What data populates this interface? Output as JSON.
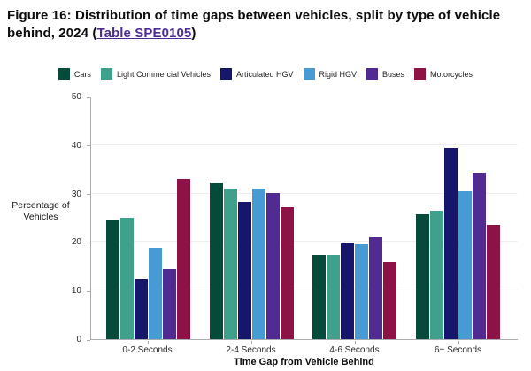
{
  "title": {
    "prefix": "Figure 16: Distribution of time gaps between vehicles, split by type of vehicle behind, 2024 (",
    "link": "Table SPE0105",
    "suffix": ")"
  },
  "colors": {
    "title_text": "#0b0c0c",
    "link": "#4c2c92",
    "axis_line": "#a9adb0",
    "gridline": "#efefef"
  },
  "chart_data": {
    "type": "bar",
    "title": "Figure 16: Distribution of time gaps between vehicles, split by type of vehicle behind, 2024 (Table SPE0105)",
    "categories": [
      "0-2 Seconds",
      "2-4 Seconds",
      "4-6 Seconds",
      "6+ Seconds"
    ],
    "series": [
      {
        "name": "Cars",
        "color": "#064a3c",
        "values": [
          24.6,
          32.1,
          17.4,
          25.7
        ]
      },
      {
        "name": "Light Commercial Vehicles",
        "color": "#3fa08c",
        "values": [
          25.0,
          31.1,
          17.3,
          26.4
        ]
      },
      {
        "name": "Articulated HGV",
        "color": "#17166d",
        "values": [
          12.4,
          28.3,
          19.7,
          39.4
        ]
      },
      {
        "name": "Rigid HGV",
        "color": "#489ad3",
        "values": [
          18.8,
          31.0,
          19.6,
          30.5
        ]
      },
      {
        "name": "Buses",
        "color": "#522b92",
        "values": [
          14.4,
          30.2,
          20.9,
          34.3
        ]
      },
      {
        "name": "Motorcycles",
        "color": "#8d1245",
        "values": [
          33.0,
          27.3,
          15.8,
          23.5
        ]
      }
    ],
    "xlabel": "Time Gap from Vehicle Behind",
    "ylabel": "Percentage of Vehicles",
    "ylim": [
      0,
      50
    ],
    "yticks": [
      0,
      10,
      20,
      30,
      40,
      50
    ],
    "grid": "horizontal",
    "legend_position": "top"
  }
}
